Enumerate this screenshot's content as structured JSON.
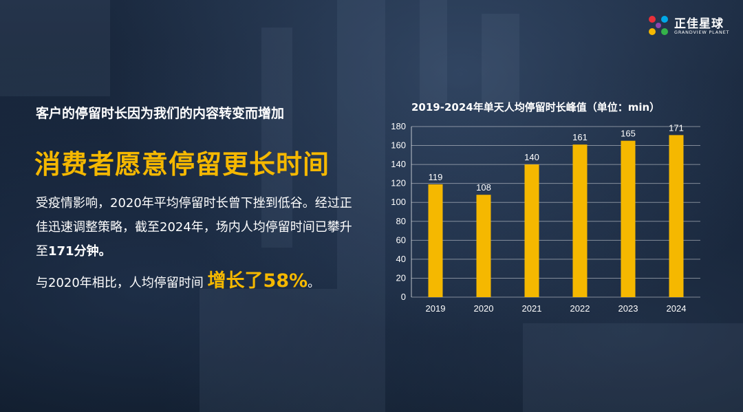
{
  "brand": {
    "name_cn": "正佳星球",
    "name_en": "GRANDVIEW PLANET"
  },
  "subtitle": "客户的停留时长因为我们的内容转变而增加",
  "headline": "消费者愿意停留更长时间",
  "para1": {
    "part1": "受疫情影响，2020年平均停留时长曾下挫到低谷。经过正佳迅速调整策略，截至2024年，场内人均停留时间已攀升至",
    "highlight": "171分钟。"
  },
  "para2": {
    "text": "与2020年相比，人均停留时间 ",
    "growth": "增长了58%",
    "end": "。"
  },
  "colors": {
    "accent": "#f5b800",
    "bar": "#f5b800",
    "text": "#ffffff"
  },
  "chart_data": {
    "type": "bar",
    "title": "2019-2024年单天人均停留时长峰值（单位：min）",
    "categories": [
      "2019",
      "2020",
      "2021",
      "2022",
      "2023",
      "2024"
    ],
    "values": [
      119,
      108,
      140,
      161,
      165,
      171
    ],
    "yticks": [
      "0",
      "20",
      "40",
      "60",
      "80",
      "100",
      "120",
      "140",
      "160",
      "180"
    ],
    "ylim": [
      0,
      180
    ],
    "grid": true,
    "data_labels": true
  }
}
